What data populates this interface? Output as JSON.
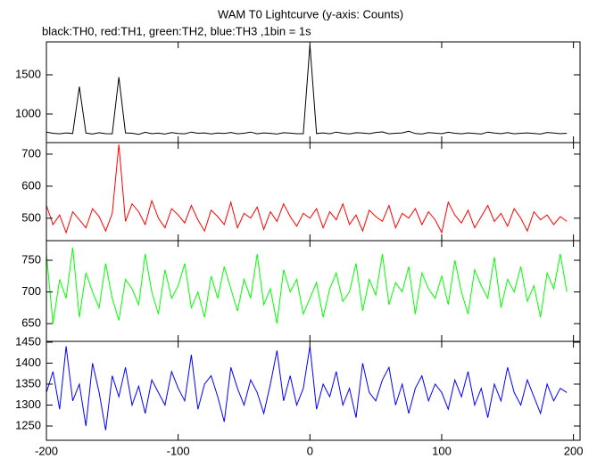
{
  "chart_data": [
    {
      "type": "line",
      "title": "WAM T0 Lightcurve (y-axis: Counts)",
      "subtitle": "black:TH0, red:TH1, green:TH2, blue:TH3 ,1bin = 1s",
      "xlim": [
        -200,
        205
      ],
      "ylim": [
        636,
        1920
      ],
      "yticks": [
        1000,
        1500
      ],
      "x": [
        -200,
        -195,
        -190,
        -185,
        -180,
        -175,
        -170,
        -165,
        -160,
        -155,
        -150,
        -145,
        -140,
        -135,
        -130,
        -125,
        -120,
        -115,
        -110,
        -105,
        -100,
        -95,
        -90,
        -85,
        -80,
        -75,
        -70,
        -65,
        -60,
        -55,
        -50,
        -45,
        -40,
        -35,
        -30,
        -25,
        -20,
        -15,
        -10,
        -5,
        0,
        5,
        10,
        15,
        20,
        25,
        30,
        35,
        40,
        45,
        50,
        55,
        60,
        65,
        70,
        75,
        80,
        85,
        90,
        95,
        100,
        105,
        110,
        115,
        120,
        125,
        130,
        135,
        140,
        145,
        150,
        155,
        160,
        165,
        170,
        175,
        180,
        185,
        190,
        195
      ],
      "series": [
        {
          "color": "#000000",
          "values": [
            770,
            755,
            748,
            760,
            752,
            1350,
            758,
            745,
            762,
            750,
            748,
            1470,
            760,
            755,
            742,
            768,
            750,
            757,
            745,
            763,
            752,
            748,
            770,
            755,
            760,
            746,
            758,
            752,
            765,
            749,
            755,
            770,
            748,
            760,
            754,
            745,
            762,
            757,
            750,
            750,
            1880,
            752,
            760,
            748,
            770,
            755,
            746,
            762,
            758,
            750,
            765,
            772,
            748,
            755,
            760,
            780,
            752,
            745,
            763,
            757,
            750,
            768,
            755,
            748,
            760,
            752,
            745,
            770,
            758,
            750,
            763,
            748,
            755,
            760,
            752,
            745,
            766,
            758,
            750,
            755
          ]
        }
      ]
    },
    {
      "type": "line",
      "xlim": [
        -200,
        205
      ],
      "ylim": [
        430,
        736
      ],
      "yticks": [
        500,
        600,
        700
      ],
      "x": [
        -200,
        -195,
        -190,
        -185,
        -180,
        -175,
        -170,
        -165,
        -160,
        -155,
        -150,
        -145,
        -140,
        -135,
        -130,
        -125,
        -120,
        -115,
        -110,
        -105,
        -100,
        -95,
        -90,
        -85,
        -80,
        -75,
        -70,
        -65,
        -60,
        -55,
        -50,
        -45,
        -40,
        -35,
        -30,
        -25,
        -20,
        -15,
        -10,
        -5,
        0,
        5,
        10,
        15,
        20,
        25,
        30,
        35,
        40,
        45,
        50,
        55,
        60,
        65,
        70,
        75,
        80,
        85,
        90,
        95,
        100,
        105,
        110,
        115,
        120,
        125,
        130,
        135,
        140,
        145,
        150,
        155,
        160,
        165,
        170,
        175,
        180,
        185,
        190,
        195
      ],
      "series": [
        {
          "color": "#ff0000",
          "values": [
            540,
            480,
            510,
            455,
            520,
            495,
            470,
            530,
            505,
            460,
            515,
            730,
            490,
            545,
            520,
            480,
            555,
            500,
            470,
            530,
            510,
            485,
            540,
            495,
            460,
            525,
            505,
            480,
            550,
            470,
            515,
            500,
            535,
            465,
            520,
            490,
            545,
            505,
            475,
            515,
            500,
            530,
            470,
            520,
            495,
            545,
            480,
            510,
            460,
            525,
            505,
            490,
            540,
            470,
            515,
            500,
            530,
            480,
            520,
            495,
            455,
            550,
            510,
            485,
            525,
            470,
            505,
            540,
            490,
            515,
            475,
            530,
            500,
            460,
            520,
            495,
            510,
            480,
            505,
            490
          ]
        }
      ]
    },
    {
      "type": "line",
      "xlim": [
        -200,
        205
      ],
      "ylim": [
        622,
        781
      ],
      "yticks": [
        650,
        700,
        750
      ],
      "x": [
        -200,
        -195,
        -190,
        -185,
        -180,
        -175,
        -170,
        -165,
        -160,
        -155,
        -150,
        -145,
        -140,
        -135,
        -130,
        -125,
        -120,
        -115,
        -110,
        -105,
        -100,
        -95,
        -90,
        -85,
        -80,
        -75,
        -70,
        -65,
        -60,
        -55,
        -50,
        -45,
        -40,
        -35,
        -30,
        -25,
        -20,
        -15,
        -10,
        -5,
        0,
        5,
        10,
        15,
        20,
        25,
        30,
        35,
        40,
        45,
        50,
        55,
        60,
        65,
        70,
        75,
        80,
        85,
        90,
        95,
        100,
        105,
        110,
        115,
        120,
        125,
        130,
        135,
        140,
        145,
        150,
        155,
        160,
        165,
        170,
        175,
        180,
        185,
        190,
        195
      ],
      "series": [
        {
          "color": "#00ff00",
          "values": [
            760,
            650,
            720,
            690,
            770,
            660,
            730,
            700,
            675,
            745,
            690,
            655,
            720,
            705,
            680,
            760,
            700,
            665,
            735,
            690,
            710,
            745,
            675,
            700,
            660,
            725,
            690,
            740,
            705,
            670,
            720,
            690,
            760,
            680,
            705,
            650,
            735,
            700,
            720,
            665,
            690,
            715,
            660,
            705,
            730,
            685,
            700,
            745,
            670,
            720,
            695,
            760,
            680,
            715,
            700,
            740,
            665,
            730,
            705,
            690,
            725,
            680,
            750,
            700,
            665,
            735,
            710,
            690,
            755,
            675,
            720,
            700,
            740,
            685,
            710,
            660,
            730,
            705,
            760,
            700
          ]
        }
      ]
    },
    {
      "type": "line",
      "xlim": [
        -200,
        205
      ],
      "ylim": [
        1216,
        1452
      ],
      "yticks": [
        1250,
        1300,
        1350,
        1400,
        1450
      ],
      "xticks": [
        -200,
        -100,
        0,
        100,
        200
      ],
      "x": [
        -200,
        -195,
        -190,
        -185,
        -180,
        -175,
        -170,
        -165,
        -160,
        -155,
        -150,
        -145,
        -140,
        -135,
        -130,
        -125,
        -120,
        -115,
        -110,
        -105,
        -100,
        -95,
        -90,
        -85,
        -80,
        -75,
        -70,
        -65,
        -60,
        -55,
        -50,
        -45,
        -40,
        -35,
        -30,
        -25,
        -20,
        -15,
        -10,
        -5,
        0,
        5,
        10,
        15,
        20,
        25,
        30,
        35,
        40,
        45,
        50,
        55,
        60,
        65,
        70,
        75,
        80,
        85,
        90,
        95,
        100,
        105,
        110,
        115,
        120,
        125,
        130,
        135,
        140,
        145,
        150,
        155,
        160,
        165,
        170,
        175,
        180,
        185,
        190,
        195
      ],
      "series": [
        {
          "color": "#0000ff",
          "values": [
            1330,
            1380,
            1290,
            1440,
            1310,
            1350,
            1250,
            1400,
            1330,
            1240,
            1370,
            1320,
            1390,
            1300,
            1345,
            1280,
            1360,
            1330,
            1300,
            1380,
            1340,
            1310,
            1420,
            1290,
            1350,
            1370,
            1320,
            1260,
            1390,
            1340,
            1300,
            1360,
            1330,
            1280,
            1350,
            1430,
            1310,
            1370,
            1300,
            1340,
            1440,
            1290,
            1350,
            1320,
            1380,
            1300,
            1340,
            1270,
            1400,
            1330,
            1310,
            1360,
            1390,
            1300,
            1350,
            1280,
            1340,
            1370,
            1310,
            1350,
            1330,
            1290,
            1360,
            1320,
            1380,
            1300,
            1340,
            1270,
            1350,
            1310,
            1390,
            1330,
            1300,
            1360,
            1320,
            1280,
            1350,
            1310,
            1340,
            1330
          ]
        }
      ]
    }
  ]
}
